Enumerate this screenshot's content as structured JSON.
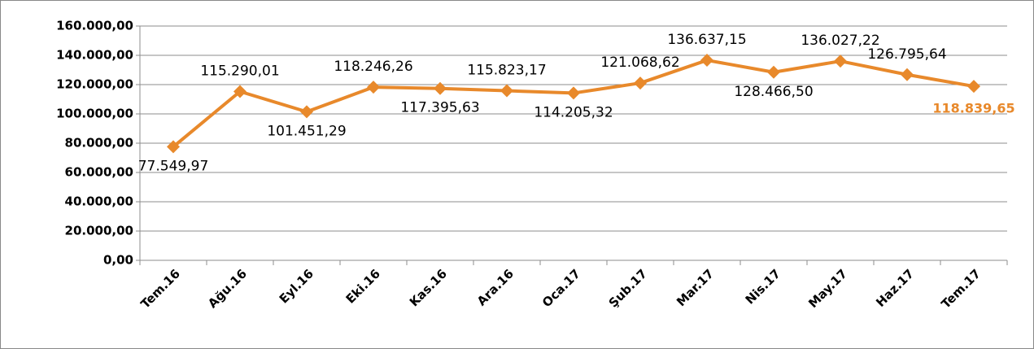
{
  "chart_data": {
    "type": "line",
    "categories": [
      "Tem.16",
      "Ağu.16",
      "Eyl.16",
      "Eki.16",
      "Kas.16",
      "Ara.16",
      "Oca.17",
      "Şub.17",
      "Mar.17",
      "Nis.17",
      "May.17",
      "Haz.17",
      "Tem.17"
    ],
    "values": [
      77549.97,
      115290.01,
      101451.29,
      118246.26,
      117395.63,
      115823.17,
      114205.32,
      121068.62,
      136637.15,
      128466.5,
      136027.22,
      126795.64,
      118839.65
    ],
    "value_labels": [
      "77.549,97",
      "115.290,01",
      "101.451,29",
      "118.246,26",
      "117.395,63",
      "115.823,17",
      "114.205,32",
      "121.068,62",
      "136.637,15",
      "128.466,50",
      "136.027,22",
      "126.795,64",
      "118.839,65"
    ],
    "color": "#e8892b",
    "ylim": [
      0,
      160000
    ],
    "yticks": [
      {
        "value": 0,
        "label": "0,00"
      },
      {
        "value": 20000,
        "label": "20.000,00"
      },
      {
        "value": 40000,
        "label": "40.000,00"
      },
      {
        "value": 60000,
        "label": "60.000,00"
      },
      {
        "value": 80000,
        "label": "80.000,00"
      },
      {
        "value": 100000,
        "label": "100.000,00"
      },
      {
        "value": 120000,
        "label": "120.000,00"
      },
      {
        "value": 140000,
        "label": "140.000,00"
      },
      {
        "value": 160000,
        "label": "160.000,00"
      }
    ],
    "grid": true
  }
}
